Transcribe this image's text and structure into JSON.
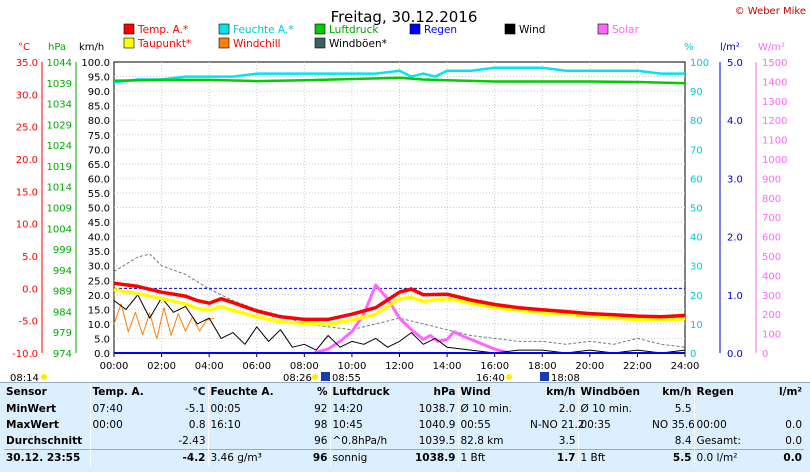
{
  "header": {
    "title": "Freitag, 30.12.2016",
    "copyright": "© Weber Mike"
  },
  "legend": [
    {
      "name": "Temp. A.*",
      "color": "#ff0000",
      "text_color": "#ff0000"
    },
    {
      "name": "Feuchte A.*",
      "color": "#00e5ee",
      "text_color": "#00c8d8"
    },
    {
      "name": "Luftdruck",
      "color": "#00cc00",
      "text_color": "#00aa00"
    },
    {
      "name": "Regen",
      "color": "#0000ff",
      "text_color": "#0000ff"
    },
    {
      "name": "Wind",
      "color": "#000000",
      "text_color": "#000000"
    },
    {
      "name": "Solar",
      "color": "#ff66ff",
      "text_color": "#ff66ff"
    },
    {
      "name": "Taupunkt*",
      "color": "#ffff00",
      "text_color": "#ff0000"
    },
    {
      "name": "Windchill",
      "color": "#ff8000",
      "text_color": "#ff0000"
    },
    {
      "name": "Windböen*",
      "color": "#406060",
      "text_color": "#000000"
    }
  ],
  "axes": {
    "temp_unit": "°C",
    "hpa_unit": "hPa",
    "kmh_unit": "km/h",
    "pct_unit": "%",
    "rain_unit": "l/m²",
    "solar_unit": "W/m²",
    "temp_ticks": [
      "35.0",
      "30.0",
      "25.0",
      "20.0",
      "15.0",
      "10.0",
      "5.0",
      "0.0",
      "-5.0",
      "-10.0"
    ],
    "hpa_ticks": [
      "1044",
      "1039",
      "1034",
      "1029",
      "1024",
      "1019",
      "1014",
      "1009",
      "1004",
      "999",
      "994",
      "989",
      "984",
      "979",
      "974"
    ],
    "kmh_ticks": [
      "100.0",
      "95.0",
      "90.0",
      "85.0",
      "80.0",
      "75.0",
      "70.0",
      "65.0",
      "60.0",
      "55.0",
      "50.0",
      "45.0",
      "40.0",
      "35.0",
      "30.0",
      "25.0",
      "20.0",
      "15.0",
      "10.0",
      "5.0",
      "0.0"
    ],
    "pct_ticks": [
      "100",
      "90",
      "80",
      "70",
      "60",
      "50",
      "40",
      "30",
      "20",
      "10",
      "0"
    ],
    "rain_ticks": [
      "5.0",
      "4.0",
      "3.0",
      "2.0",
      "1.0",
      "0.0"
    ],
    "solar_ticks": [
      "1500",
      "1400",
      "1300",
      "1200",
      "1100",
      "1000",
      "900",
      "800",
      "700",
      "600",
      "500",
      "400",
      "300",
      "200",
      "100",
      "0"
    ],
    "x_ticks": [
      "00:00",
      "02:00",
      "04:00",
      "06:00",
      "08:00",
      "10:00",
      "12:00",
      "14:00",
      "16:00",
      "18:00",
      "20:00",
      "22:00",
      "24:00"
    ]
  },
  "sun": {
    "sunrise": "08:26",
    "sunset": "16:40",
    "moonrise": "08:55",
    "moonset": "18:08",
    "start_time": "08:14"
  },
  "chart_data": {
    "type": "line",
    "title": "Freitag, 30.12.2016",
    "x_unit": "hour",
    "xlim": [
      0,
      24
    ],
    "temp_range_c": [
      -10,
      35
    ],
    "pressure_range_hpa": [
      974,
      1044
    ],
    "wind_range_kmh": [
      0,
      100
    ],
    "humidity_range_pct": [
      0,
      100
    ],
    "rain_range_lm2": [
      0,
      5
    ],
    "solar_range_wm2": [
      0,
      1500
    ],
    "grid": true,
    "series": [
      {
        "name": "Temp. A.*",
        "unit": "°C",
        "color": "#ff0000",
        "x": [
          0,
          1,
          2,
          3,
          3.5,
          4,
          4.5,
          5,
          6,
          7,
          8,
          9,
          10,
          11,
          12,
          12.5,
          13,
          14,
          15,
          16,
          17,
          18,
          19,
          20,
          21,
          22,
          23,
          24
        ],
        "y": [
          0.8,
          0.3,
          -0.6,
          -1.2,
          -1.9,
          -2.3,
          -1.6,
          -2.2,
          -3.5,
          -4.4,
          -4.8,
          -4.8,
          -4.0,
          -3.0,
          -0.6,
          -0.1,
          -1.0,
          -0.9,
          -1.8,
          -2.5,
          -3.0,
          -3.3,
          -3.6,
          -3.9,
          -4.1,
          -4.3,
          -4.4,
          -4.2
        ]
      },
      {
        "name": "Taupunkt*",
        "unit": "°C",
        "color": "#ffff00",
        "x": [
          0,
          1,
          2,
          3,
          3.5,
          4,
          4.5,
          5,
          6,
          7,
          8,
          9,
          10,
          11,
          12,
          12.5,
          13,
          14,
          15,
          16,
          17,
          18,
          19,
          20,
          21,
          22,
          23,
          24
        ],
        "y": [
          -0.2,
          -0.8,
          -1.6,
          -2.4,
          -3.1,
          -3.4,
          -2.8,
          -3.4,
          -4.4,
          -5.2,
          -5.4,
          -5.6,
          -4.9,
          -4.0,
          -1.6,
          -1.4,
          -2.0,
          -1.6,
          -2.3,
          -3.0,
          -3.4,
          -3.8,
          -4.0,
          -4.3,
          -4.6,
          -4.8,
          -4.9,
          -4.7
        ]
      },
      {
        "name": "Feuchte A.*",
        "unit": "%",
        "color": "#00e5ee",
        "x": [
          0,
          1,
          2,
          3,
          4,
          5,
          6,
          7,
          8,
          9,
          10,
          11,
          12,
          12.5,
          13,
          13.5,
          14,
          15,
          16,
          17,
          18,
          19,
          20,
          21,
          22,
          23,
          24
        ],
        "y": [
          93,
          94,
          94,
          95,
          95,
          95,
          96,
          96,
          96,
          96,
          96,
          96,
          97,
          95,
          96,
          95,
          97,
          97,
          98,
          98,
          98,
          97,
          97,
          97,
          97,
          96,
          96
        ]
      },
      {
        "name": "Luftdruck",
        "unit": "hPa",
        "color": "#00cc00",
        "x": [
          0,
          2,
          4,
          6,
          8,
          10,
          12,
          13,
          14,
          16,
          18,
          20,
          22,
          24
        ],
        "y": [
          1039.5,
          1039.7,
          1039.7,
          1039.4,
          1039.6,
          1039.9,
          1040.2,
          1039.8,
          1039.6,
          1039.3,
          1039.3,
          1039.3,
          1039.2,
          1038.9
        ]
      },
      {
        "name": "Wind",
        "unit": "km/h",
        "color": "#000000",
        "x": [
          0,
          0.5,
          1,
          1.5,
          2,
          2.5,
          3,
          3.5,
          4,
          4.5,
          5,
          5.5,
          6,
          6.5,
          7,
          7.5,
          8,
          8.5,
          9,
          9.5,
          10,
          10.5,
          11,
          11.5,
          12,
          12.5,
          13,
          13.5,
          14,
          15,
          16,
          17,
          18,
          19,
          20,
          21,
          22,
          23,
          24
        ],
        "y": [
          18,
          15,
          20,
          12,
          19,
          14,
          16,
          10,
          12,
          5,
          7,
          3,
          9,
          4,
          8,
          2,
          3,
          1,
          6,
          2,
          4,
          3,
          5,
          2,
          4,
          7,
          3,
          5,
          2,
          1,
          0,
          1,
          1,
          0,
          1,
          0,
          1,
          0,
          1
        ]
      },
      {
        "name": "Windböen*",
        "unit": "km/h",
        "color": "#406060",
        "x": [
          0,
          1,
          1.5,
          2,
          3,
          4,
          5,
          6,
          7,
          8,
          9,
          10,
          11,
          12,
          13,
          14,
          15,
          16,
          17,
          18,
          19,
          20,
          21,
          22,
          23,
          24
        ],
        "y": [
          28,
          33,
          34,
          30,
          27,
          22,
          18,
          15,
          13,
          10,
          9,
          8,
          10,
          12,
          10,
          8,
          6,
          5,
          4,
          4,
          3,
          4,
          3,
          5,
          3,
          2
        ]
      },
      {
        "name": "Windchill",
        "unit": "°C",
        "color": "#ff8000",
        "x": [
          0,
          0.3,
          0.6,
          0.9,
          1.2,
          1.5,
          1.8,
          2.1,
          2.4,
          2.7,
          3.0,
          3.3,
          3.6,
          3.9,
          4.2
        ],
        "y": [
          -5.5,
          -2.4,
          -6.7,
          -3.7,
          -7.2,
          -3.8,
          -7.8,
          -3.0,
          -7.3,
          -3.9,
          -6.6,
          -4.4,
          -6.6,
          -4.9,
          -4.6
        ]
      },
      {
        "name": "Solar",
        "unit": "W/m²",
        "color": "#ff66ff",
        "x": [
          8.4,
          9,
          9.5,
          10,
          10.5,
          11,
          11.5,
          12,
          12.5,
          13,
          13.3,
          13.6,
          14,
          14.3,
          14.6,
          15,
          15.5,
          16,
          16.6
        ],
        "y": [
          0,
          20,
          60,
          110,
          200,
          350,
          280,
          180,
          120,
          70,
          90,
          60,
          70,
          110,
          90,
          70,
          45,
          20,
          0
        ]
      },
      {
        "name": "Regen",
        "unit": "l/m²",
        "color": "#0000ff",
        "x": [
          0,
          24
        ],
        "y": [
          0,
          0
        ]
      }
    ]
  },
  "stats": {
    "headers": {
      "sensor": "Sensor",
      "temp": "Temp. A.",
      "temp_unit": "°C",
      "hum": "Feuchte A.",
      "hum_unit": "%",
      "press": "Luftdruck",
      "press_unit": "hPa",
      "wind": "Wind",
      "wind_unit": "km/h",
      "gust": "Windböen",
      "gust_unit": "km/h",
      "rain": "Regen",
      "rain_unit": "l/m²"
    },
    "min": {
      "label": "MinWert",
      "temp_time": "07:40",
      "temp": "-5.1",
      "hum_time": "00:05",
      "hum": "92",
      "press_time": "14:20",
      "press": "1038.7",
      "wind_label": "Ø 10 min.",
      "wind": "2.0",
      "gust_label": "Ø 10 min.",
      "gust": "5.5",
      "rain_label": "",
      "rain": ""
    },
    "max": {
      "label": "MaxWert",
      "temp_time": "00:00",
      "temp": "0.8",
      "hum_time": "16:10",
      "hum": "98",
      "press_time": "10:45",
      "press": "1040.9",
      "wind_label": "00:55",
      "wind_dir": "N-NO 21.2",
      "wind": "",
      "gust_label": "00:35",
      "gust_dir": "NO 35.6",
      "gust": "",
      "rain_label": "00:00",
      "rain": "0.0"
    },
    "avg": {
      "label": "Durchschnitt",
      "temp": "-2.43",
      "hum": "96",
      "press_label": "^0.8hPa/h",
      "press": "1039.5",
      "wind_label": "82.8 km",
      "wind": "3.5",
      "gust": "8.4",
      "rain_label": "Gesamt:",
      "rain": "0.0"
    },
    "current": {
      "label": "30.12. 23:55",
      "temp": "-4.2",
      "hum_label": "3.46 g/m³",
      "hum": "96",
      "press_label": "sonnig",
      "press": "1038.9",
      "wind_label": "1 Bft",
      "wind": "1.7",
      "gust_label": "1 Bft",
      "gust": "5.5",
      "rain_label": "0.0 l/m²",
      "rain": "0.0"
    }
  }
}
